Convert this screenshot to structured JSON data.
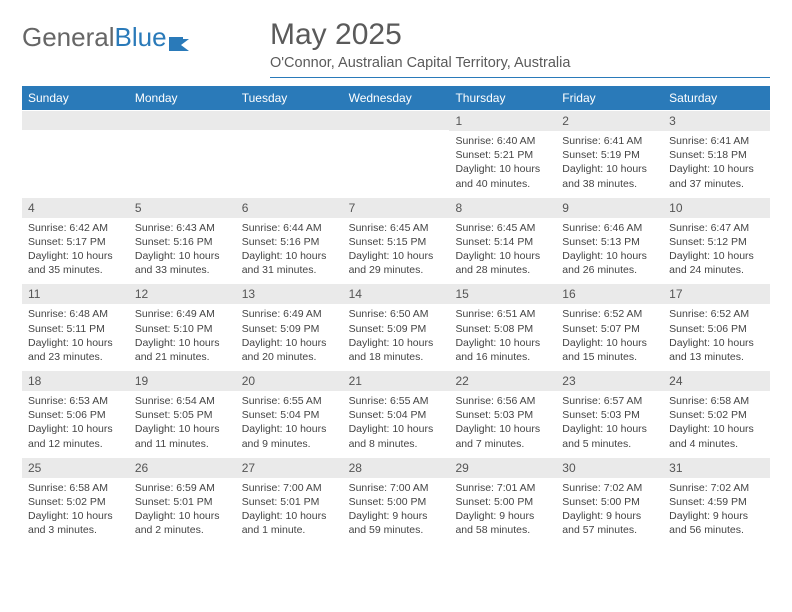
{
  "logo": {
    "text1": "General",
    "text2": "Blue"
  },
  "title": "May 2025",
  "location": "O'Connor, Australian Capital Territory, Australia",
  "colors": {
    "accent": "#2a7ab9",
    "header_text": "#ffffff",
    "daynum_bg": "#eaeaea",
    "body_text": "#444444",
    "title_text": "#5a5a5a",
    "logo_gray": "#666666",
    "background": "#ffffff"
  },
  "day_headers": [
    "Sunday",
    "Monday",
    "Tuesday",
    "Wednesday",
    "Thursday",
    "Friday",
    "Saturday"
  ],
  "weeks": [
    [
      {
        "n": "",
        "sr": "",
        "ss": "",
        "dl": ""
      },
      {
        "n": "",
        "sr": "",
        "ss": "",
        "dl": ""
      },
      {
        "n": "",
        "sr": "",
        "ss": "",
        "dl": ""
      },
      {
        "n": "",
        "sr": "",
        "ss": "",
        "dl": ""
      },
      {
        "n": "1",
        "sr": "Sunrise: 6:40 AM",
        "ss": "Sunset: 5:21 PM",
        "dl": "Daylight: 10 hours and 40 minutes."
      },
      {
        "n": "2",
        "sr": "Sunrise: 6:41 AM",
        "ss": "Sunset: 5:19 PM",
        "dl": "Daylight: 10 hours and 38 minutes."
      },
      {
        "n": "3",
        "sr": "Sunrise: 6:41 AM",
        "ss": "Sunset: 5:18 PM",
        "dl": "Daylight: 10 hours and 37 minutes."
      }
    ],
    [
      {
        "n": "4",
        "sr": "Sunrise: 6:42 AM",
        "ss": "Sunset: 5:17 PM",
        "dl": "Daylight: 10 hours and 35 minutes."
      },
      {
        "n": "5",
        "sr": "Sunrise: 6:43 AM",
        "ss": "Sunset: 5:16 PM",
        "dl": "Daylight: 10 hours and 33 minutes."
      },
      {
        "n": "6",
        "sr": "Sunrise: 6:44 AM",
        "ss": "Sunset: 5:16 PM",
        "dl": "Daylight: 10 hours and 31 minutes."
      },
      {
        "n": "7",
        "sr": "Sunrise: 6:45 AM",
        "ss": "Sunset: 5:15 PM",
        "dl": "Daylight: 10 hours and 29 minutes."
      },
      {
        "n": "8",
        "sr": "Sunrise: 6:45 AM",
        "ss": "Sunset: 5:14 PM",
        "dl": "Daylight: 10 hours and 28 minutes."
      },
      {
        "n": "9",
        "sr": "Sunrise: 6:46 AM",
        "ss": "Sunset: 5:13 PM",
        "dl": "Daylight: 10 hours and 26 minutes."
      },
      {
        "n": "10",
        "sr": "Sunrise: 6:47 AM",
        "ss": "Sunset: 5:12 PM",
        "dl": "Daylight: 10 hours and 24 minutes."
      }
    ],
    [
      {
        "n": "11",
        "sr": "Sunrise: 6:48 AM",
        "ss": "Sunset: 5:11 PM",
        "dl": "Daylight: 10 hours and 23 minutes."
      },
      {
        "n": "12",
        "sr": "Sunrise: 6:49 AM",
        "ss": "Sunset: 5:10 PM",
        "dl": "Daylight: 10 hours and 21 minutes."
      },
      {
        "n": "13",
        "sr": "Sunrise: 6:49 AM",
        "ss": "Sunset: 5:09 PM",
        "dl": "Daylight: 10 hours and 20 minutes."
      },
      {
        "n": "14",
        "sr": "Sunrise: 6:50 AM",
        "ss": "Sunset: 5:09 PM",
        "dl": "Daylight: 10 hours and 18 minutes."
      },
      {
        "n": "15",
        "sr": "Sunrise: 6:51 AM",
        "ss": "Sunset: 5:08 PM",
        "dl": "Daylight: 10 hours and 16 minutes."
      },
      {
        "n": "16",
        "sr": "Sunrise: 6:52 AM",
        "ss": "Sunset: 5:07 PM",
        "dl": "Daylight: 10 hours and 15 minutes."
      },
      {
        "n": "17",
        "sr": "Sunrise: 6:52 AM",
        "ss": "Sunset: 5:06 PM",
        "dl": "Daylight: 10 hours and 13 minutes."
      }
    ],
    [
      {
        "n": "18",
        "sr": "Sunrise: 6:53 AM",
        "ss": "Sunset: 5:06 PM",
        "dl": "Daylight: 10 hours and 12 minutes."
      },
      {
        "n": "19",
        "sr": "Sunrise: 6:54 AM",
        "ss": "Sunset: 5:05 PM",
        "dl": "Daylight: 10 hours and 11 minutes."
      },
      {
        "n": "20",
        "sr": "Sunrise: 6:55 AM",
        "ss": "Sunset: 5:04 PM",
        "dl": "Daylight: 10 hours and 9 minutes."
      },
      {
        "n": "21",
        "sr": "Sunrise: 6:55 AM",
        "ss": "Sunset: 5:04 PM",
        "dl": "Daylight: 10 hours and 8 minutes."
      },
      {
        "n": "22",
        "sr": "Sunrise: 6:56 AM",
        "ss": "Sunset: 5:03 PM",
        "dl": "Daylight: 10 hours and 7 minutes."
      },
      {
        "n": "23",
        "sr": "Sunrise: 6:57 AM",
        "ss": "Sunset: 5:03 PM",
        "dl": "Daylight: 10 hours and 5 minutes."
      },
      {
        "n": "24",
        "sr": "Sunrise: 6:58 AM",
        "ss": "Sunset: 5:02 PM",
        "dl": "Daylight: 10 hours and 4 minutes."
      }
    ],
    [
      {
        "n": "25",
        "sr": "Sunrise: 6:58 AM",
        "ss": "Sunset: 5:02 PM",
        "dl": "Daylight: 10 hours and 3 minutes."
      },
      {
        "n": "26",
        "sr": "Sunrise: 6:59 AM",
        "ss": "Sunset: 5:01 PM",
        "dl": "Daylight: 10 hours and 2 minutes."
      },
      {
        "n": "27",
        "sr": "Sunrise: 7:00 AM",
        "ss": "Sunset: 5:01 PM",
        "dl": "Daylight: 10 hours and 1 minute."
      },
      {
        "n": "28",
        "sr": "Sunrise: 7:00 AM",
        "ss": "Sunset: 5:00 PM",
        "dl": "Daylight: 9 hours and 59 minutes."
      },
      {
        "n": "29",
        "sr": "Sunrise: 7:01 AM",
        "ss": "Sunset: 5:00 PM",
        "dl": "Daylight: 9 hours and 58 minutes."
      },
      {
        "n": "30",
        "sr": "Sunrise: 7:02 AM",
        "ss": "Sunset: 5:00 PM",
        "dl": "Daylight: 9 hours and 57 minutes."
      },
      {
        "n": "31",
        "sr": "Sunrise: 7:02 AM",
        "ss": "Sunset: 4:59 PM",
        "dl": "Daylight: 9 hours and 56 minutes."
      }
    ]
  ]
}
